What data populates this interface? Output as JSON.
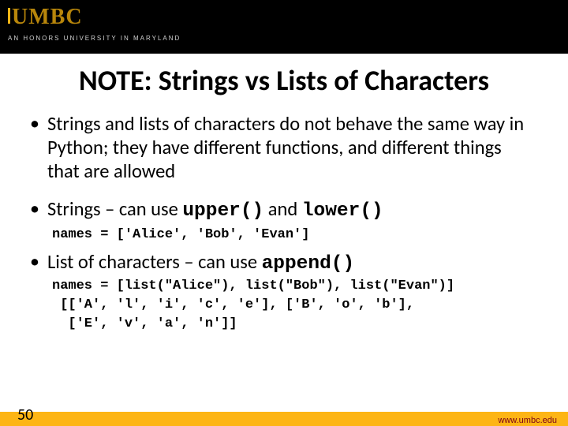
{
  "header": {
    "logo_text": "UMBC",
    "tagline": "AN HONORS UNIVERSITY IN MARYLAND",
    "logo_color": "#b8860b",
    "accent_color": "#fdb515",
    "bg_color": "#000000"
  },
  "title": "NOTE: Strings vs Lists of Characters",
  "bullets": [
    {
      "text": "Strings and lists of characters do not behave the same way in Python; they have different functions, and different things that are allowed"
    },
    {
      "prefix": "Strings – can use ",
      "code1": "upper()",
      "mid": " and ",
      "code2": "lower()",
      "code_line": "names = ['Alice', 'Bob', 'Evan']"
    },
    {
      "prefix": "List of characters – can use  ",
      "code1": "append()",
      "code_line1": "names = [list(\"Alice\"), list(\"Bob\"), list(\"Evan\")]",
      "code_line2": " [['A', 'l', 'i', 'c', 'e'], ['B', 'o', 'b'],",
      "code_line3": "  ['E', 'v', 'a', 'n']]"
    }
  ],
  "footer": {
    "page_number": "50",
    "url": "www.umbc.edu",
    "bar_color": "#fdb515",
    "url_color": "#7a0019"
  }
}
